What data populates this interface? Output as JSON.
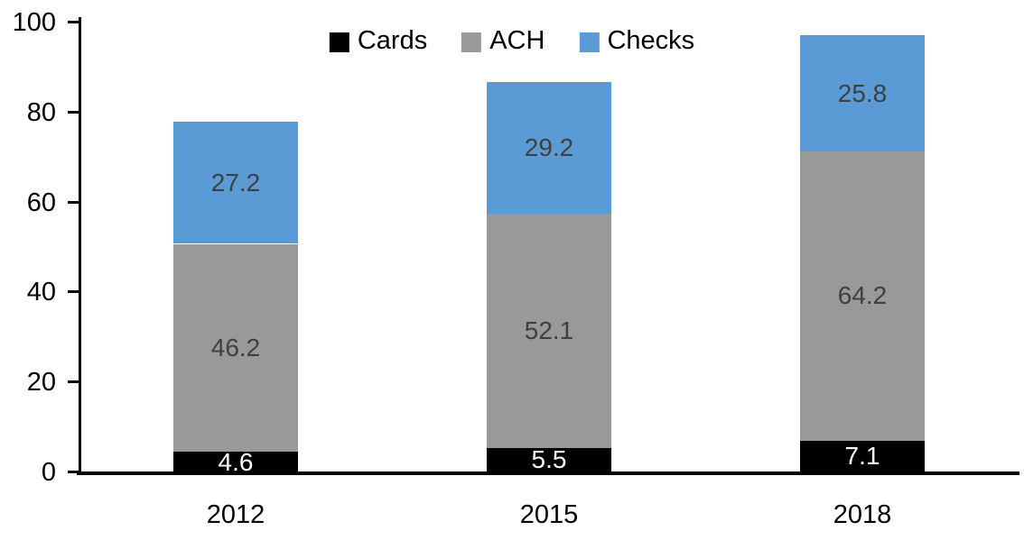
{
  "chart_data": {
    "type": "bar",
    "stacked": true,
    "title": "",
    "xlabel": "",
    "ylabel": "",
    "categories": [
      "2012",
      "2015",
      "2018"
    ],
    "series": [
      {
        "name": "Cards",
        "color": "#000000",
        "label_color": "#ffffff",
        "values": [
          4.6,
          5.5,
          7.1
        ]
      },
      {
        "name": "ACH",
        "color": "#999999",
        "label_color": "#404040",
        "values": [
          46.2,
          52.1,
          64.2
        ]
      },
      {
        "name": "Checks",
        "color": "#5b9bd5",
        "label_color": "#404040",
        "values": [
          27.2,
          29.2,
          25.8
        ]
      }
    ],
    "totals": [
      78.0,
      86.8,
      97.1
    ],
    "ylim": [
      0,
      100
    ],
    "yticks": [
      0,
      20,
      40,
      60,
      80,
      100
    ],
    "grid": false,
    "legend_position": "top-center",
    "axis_color": "#000000"
  }
}
